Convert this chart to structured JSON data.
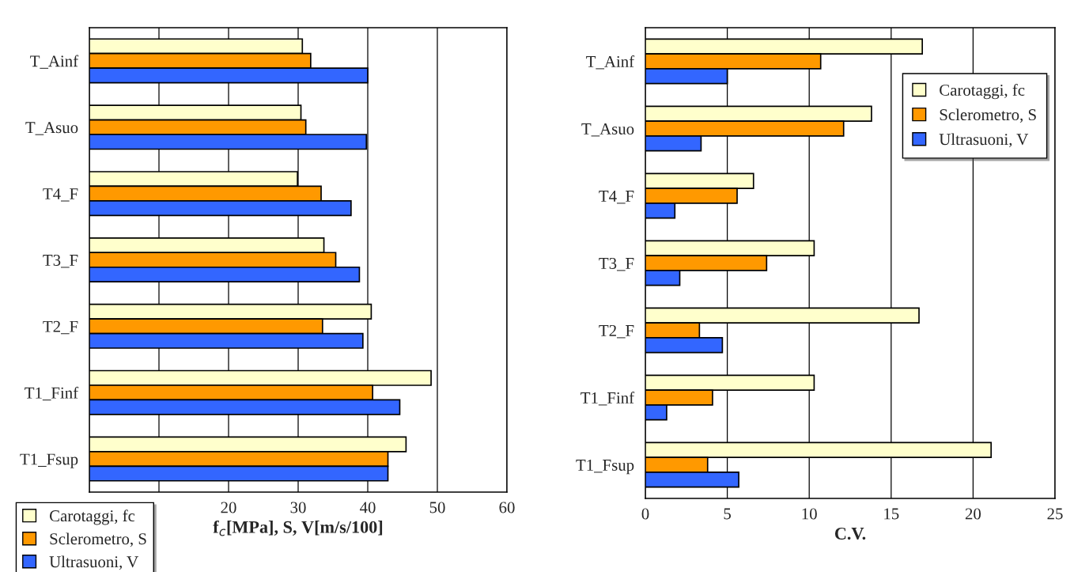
{
  "chart_data": [
    {
      "type": "bar",
      "orientation": "horizontal",
      "xlabel": "f$_{c}$[MPa], S, V[m/s/100]",
      "categories": [
        "T_Ainf",
        "T_Asuo",
        "T4_F",
        "T3_F",
        "T2_F",
        "T1_Finf",
        "T1_Fsup"
      ],
      "series": [
        {
          "name": "Carotaggi, fc",
          "color": "#ffffcc",
          "values": [
            30.6,
            30.4,
            29.9,
            33.7,
            40.5,
            49.1,
            45.5
          ]
        },
        {
          "name": "Sclerometro, S",
          "color": "#ff9900",
          "values": [
            31.8,
            31.1,
            33.3,
            35.4,
            33.5,
            40.7,
            42.9
          ]
        },
        {
          "name": "Ultrasuoni, V",
          "color": "#3366ff",
          "values": [
            40.0,
            39.8,
            37.6,
            38.8,
            39.3,
            44.6,
            42.9
          ]
        }
      ],
      "xlim": [
        0,
        60
      ],
      "xticks": [
        {
          "value": 0,
          "label": null
        },
        {
          "value": 10,
          "label": null
        },
        20,
        30,
        40,
        50,
        60
      ],
      "grid": "x",
      "legend": "bottom left"
    },
    {
      "type": "bar",
      "orientation": "horizontal",
      "xlabel": "C.V.",
      "categories": [
        "T_Ainf",
        "T_Asuo",
        "T4_F",
        "T3_F",
        "T2_F",
        "T1_Finf",
        "T1_Fsup"
      ],
      "series": [
        {
          "name": "Carotaggi, fc",
          "color": "#ffffcc",
          "values": [
            16.9,
            13.8,
            6.6,
            10.3,
            16.7,
            10.3,
            21.1
          ]
        },
        {
          "name": "Sclerometro, S",
          "color": "#ff9900",
          "values": [
            10.7,
            12.1,
            5.6,
            7.4,
            3.3,
            4.1,
            3.8
          ]
        },
        {
          "name": "Ultrasuoni, V",
          "color": "#3366ff",
          "values": [
            5.0,
            3.4,
            1.8,
            2.1,
            4.7,
            1.3,
            5.7
          ]
        }
      ],
      "xlim": [
        0,
        25
      ],
      "xticks": [
        0,
        5,
        10,
        15,
        20,
        25
      ],
      "grid": "x",
      "legend": "top right"
    }
  ]
}
